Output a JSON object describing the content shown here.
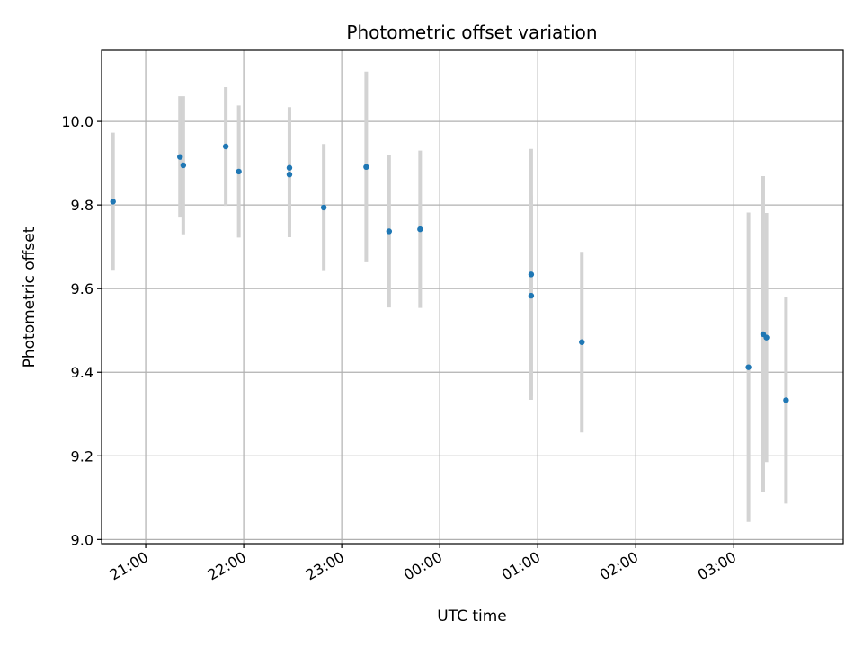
{
  "chart_data": {
    "type": "scatter",
    "title": "Photometric offset variation",
    "xlabel": "UTC time",
    "ylabel": "Photometric offset",
    "x_ticks": [
      "21:00",
      "22:00",
      "23:00",
      "00:00",
      "01:00",
      "02:00",
      "03:00"
    ],
    "y_ticks": [
      "9.0",
      "9.2",
      "9.4",
      "9.6",
      "9.8",
      "10.0"
    ],
    "xlim": [
      "20:33",
      "04:07"
    ],
    "ylim": [
      8.99,
      10.17
    ],
    "grid": true,
    "colors": {
      "point": "#1f77b4",
      "errorbar": "#d3d3d3",
      "grid": "#b0b0b0"
    },
    "points": [
      {
        "time": "20:40",
        "y": 9.808,
        "err": 0.165
      },
      {
        "time": "21:21",
        "y": 9.915,
        "err": 0.145
      },
      {
        "time": "21:23",
        "y": 9.895,
        "err": 0.165
      },
      {
        "time": "21:49",
        "y": 9.94,
        "err": 0.142
      },
      {
        "time": "21:57",
        "y": 9.88,
        "err": 0.158
      },
      {
        "time": "22:28",
        "y": 9.889,
        "err": 0.145
      },
      {
        "time": "22:28",
        "y": 9.873,
        "err": 0.15
      },
      {
        "time": "22:49",
        "y": 9.794,
        "err": 0.152
      },
      {
        "time": "23:15",
        "y": 9.891,
        "err": 0.228
      },
      {
        "time": "23:29",
        "y": 9.737,
        "err": 0.182
      },
      {
        "time": "23:48",
        "y": 9.742,
        "err": 0.188
      },
      {
        "time": "00:56",
        "y": 9.634,
        "err": 0.3
      },
      {
        "time": "00:56",
        "y": 9.583,
        "err": 0.24
      },
      {
        "time": "01:27",
        "y": 9.472,
        "err": 0.216
      },
      {
        "time": "03:09",
        "y": 9.412,
        "err": 0.37
      },
      {
        "time": "03:18",
        "y": 9.491,
        "err": 0.378
      },
      {
        "time": "03:20",
        "y": 9.483,
        "err": 0.298
      },
      {
        "time": "03:32",
        "y": 9.333,
        "err": 0.247
      }
    ]
  }
}
